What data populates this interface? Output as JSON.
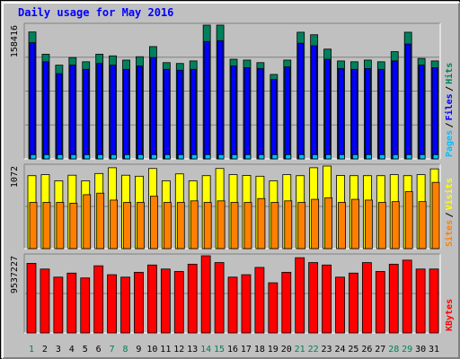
{
  "title": "Daily usage for May 2016",
  "colors": {
    "hits": "#00805c",
    "files": "#0000ff",
    "pages": "#00c0ff",
    "visits": "#ffff00",
    "sites": "#ff8000",
    "kbytes": "#ff0000",
    "day_weekday": "#000000",
    "day_weekend": "#00805c"
  },
  "chart_data": [
    {
      "type": "bar",
      "panel": "hits-files-pages",
      "categories": [
        "1",
        "2",
        "3",
        "4",
        "5",
        "6",
        "7",
        "8",
        "9",
        "10",
        "11",
        "12",
        "13",
        "14",
        "15",
        "16",
        "17",
        "18",
        "19",
        "20",
        "21",
        "22",
        "23",
        "24",
        "25",
        "26",
        "27",
        "28",
        "29",
        "30",
        "31"
      ],
      "weekend_days": [
        "1",
        "7",
        "8",
        "14",
        "15",
        "21",
        "22",
        "28",
        "29"
      ],
      "y_max_label": "158416",
      "ylim": [
        0,
        158416
      ],
      "series": [
        {
          "name": "Hits",
          "values": [
            150300,
            124000,
            111000,
            120000,
            115000,
            124000,
            122000,
            117000,
            121000,
            133000,
            114000,
            113000,
            116000,
            158416,
            158416,
            118000,
            117000,
            114000,
            100000,
            117000,
            150000,
            147000,
            130000,
            116000,
            115000,
            117000,
            115000,
            127000,
            150000,
            119000,
            116000
          ]
        },
        {
          "name": "Files",
          "values": [
            137600,
            115000,
            101000,
            111000,
            106000,
            113000,
            111000,
            106000,
            110000,
            120000,
            106000,
            105000,
            106000,
            139000,
            140000,
            110000,
            108000,
            107000,
            94000,
            109000,
            137000,
            134000,
            118000,
            107000,
            106000,
            107000,
            106000,
            116000,
            136000,
            111000,
            108000
          ]
        },
        {
          "name": "Pages",
          "values": [
            5000,
            5000,
            5000,
            5000,
            5000,
            5000,
            5000,
            5000,
            5000,
            5000,
            5000,
            5000,
            5000,
            5000,
            5000,
            5000,
            5000,
            5000,
            5000,
            5000,
            5000,
            5000,
            5000,
            5000,
            5000,
            5000,
            5000,
            5000,
            5000,
            5000,
            5000
          ]
        }
      ],
      "legend": [
        "Pages",
        "/",
        "Files",
        "/",
        "Hits"
      ]
    },
    {
      "type": "bar",
      "panel": "sites-visits",
      "categories": [
        "1",
        "2",
        "3",
        "4",
        "5",
        "6",
        "7",
        "8",
        "9",
        "10",
        "11",
        "12",
        "13",
        "14",
        "15",
        "16",
        "17",
        "18",
        "19",
        "20",
        "21",
        "22",
        "23",
        "24",
        "25",
        "26",
        "27",
        "28",
        "29",
        "30",
        "31"
      ],
      "y_max_label": "1072",
      "ylim": [
        0,
        1072
      ],
      "series": [
        {
          "name": "Visits",
          "values": [
            947,
            960,
            880,
            953,
            880,
            975,
            1050,
            953,
            940,
            1040,
            880,
            970,
            880,
            947,
            1040,
            960,
            950,
            940,
            880,
            960,
            947,
            1050,
            1072,
            950,
            947,
            947,
            947,
            960,
            947,
            960,
            1035
          ]
        },
        {
          "name": "Sites",
          "values": [
            600,
            600,
            600,
            590,
            700,
            720,
            630,
            600,
            600,
            680,
            600,
            600,
            620,
            600,
            620,
            600,
            600,
            650,
            600,
            620,
            600,
            640,
            660,
            600,
            640,
            630,
            600,
            610,
            740,
            610,
            860
          ]
        }
      ],
      "legend": [
        "Sites",
        "/",
        "Visits"
      ]
    },
    {
      "type": "bar",
      "panel": "kbytes",
      "categories": [
        "1",
        "2",
        "3",
        "4",
        "5",
        "6",
        "7",
        "8",
        "9",
        "10",
        "11",
        "12",
        "13",
        "14",
        "15",
        "16",
        "17",
        "18",
        "19",
        "20",
        "21",
        "22",
        "23",
        "24",
        "25",
        "26",
        "27",
        "28",
        "29",
        "30",
        "31"
      ],
      "y_max_label": "9537227",
      "ylim": [
        0,
        9537227
      ],
      "series": [
        {
          "name": "KBytes",
          "values": [
            8600000,
            7900000,
            6900000,
            7400000,
            6800000,
            8300000,
            7200000,
            6900000,
            7500000,
            8400000,
            7900000,
            7600000,
            8500000,
            9537227,
            8700000,
            6900000,
            7200000,
            8100000,
            6200000,
            7500000,
            9300000,
            8700000,
            8400000,
            6900000,
            7400000,
            8700000,
            7600000,
            8500000,
            9000000,
            7900000,
            7900000
          ]
        }
      ],
      "legend": [
        "KBytes"
      ]
    }
  ]
}
